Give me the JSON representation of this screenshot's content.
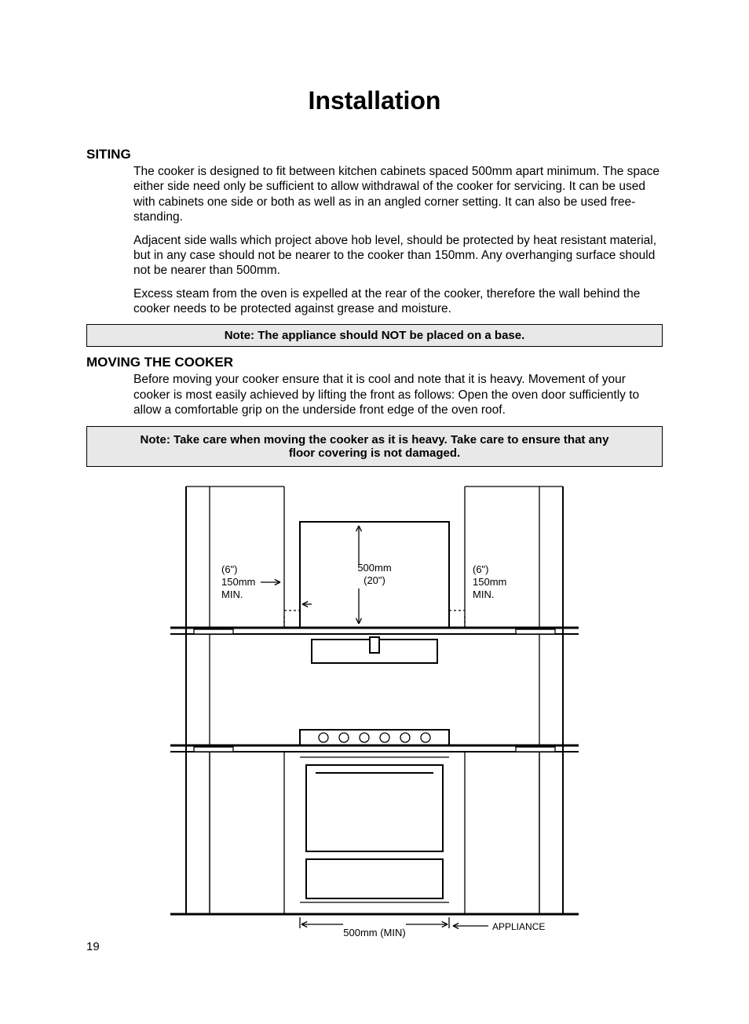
{
  "title": "Installation",
  "pageNumber": "19",
  "sections": {
    "siting": {
      "heading": "SITING",
      "p1": "The cooker is designed to fit between kitchen cabinets spaced 500mm apart minimum. The space either side need only be sufficient to allow withdrawal of the cooker for servicing. It can be used with cabinets one side or both as well as in an angled corner setting. It can also be used free-standing.",
      "p2": "Adjacent side walls which project above hob level, should be protected by heat resistant material, but in any case should not be nearer to the cooker than 150mm. Any overhanging surface should not be nearer than 500mm.",
      "p3": "Excess steam from the oven is expelled at the rear of the cooker, therefore the wall behind the cooker needs to be protected against grease and moisture."
    },
    "note1": "Note: The appliance should NOT be placed on a base.",
    "moving": {
      "heading": "MOVING  THE COOKER",
      "p1": "Before moving your cooker ensure that it is cool and note that it is heavy. Movement of your cooker is most easily achieved by lifting the front as follows: Open the oven door sufficiently to allow a comfortable grip on the underside front edge of the oven roof."
    },
    "note2": "Note: Take care when moving the cooker as it is heavy. Take care to ensure that any floor covering is not damaged."
  },
  "diagram": {
    "leftLabel": {
      "l1": "(6\")",
      "l2": "150mm",
      "l3": "MIN."
    },
    "midLabel": {
      "l1": "500mm",
      "l2": "(20\")"
    },
    "rightLabel": {
      "l1": "(6\")",
      "l2": "150mm",
      "l3": "MIN."
    },
    "bottomMid": "500mm (MIN)",
    "bottomRight": "APPLIANCE",
    "colors": {
      "stroke": "#000000",
      "bg": "#ffffff"
    },
    "lineWidths": {
      "thick": 3,
      "med": 2,
      "thin": 1.3
    }
  }
}
